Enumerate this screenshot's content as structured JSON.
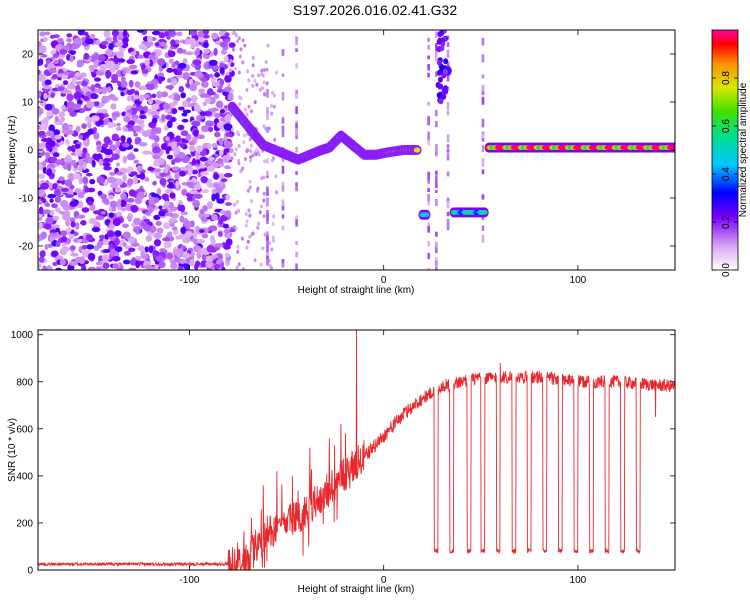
{
  "title": "S197.2026.016.02.41.G32",
  "colors": {
    "snr_line": "#e8282c",
    "frame": "#000000",
    "background": "#ffffff"
  },
  "chart_data": [
    {
      "type": "heatmap",
      "xlabel": "Height of straight line (km)",
      "ylabel": "Frequency (Hz)",
      "xlim": [
        -178,
        150
      ],
      "ylim": [
        -25,
        25
      ],
      "xticks": [
        -100,
        0,
        100
      ],
      "yticks": [
        -20,
        -10,
        0,
        10,
        20
      ],
      "colorbar": {
        "label": "Normalized spectral amplitude",
        "range": [
          0,
          1
        ],
        "ticks": [
          "0.0",
          "0.2",
          "0.4",
          "0.6",
          "0.8"
        ],
        "tick_values": [
          0.0,
          0.2,
          0.4,
          0.6,
          0.8
        ]
      },
      "ridge": [
        {
          "x": -78,
          "f": 9
        },
        {
          "x": -72,
          "f": 6
        },
        {
          "x": -66,
          "f": 3
        },
        {
          "x": -62,
          "f": 1
        },
        {
          "x": -56,
          "f": 0
        },
        {
          "x": -50,
          "f": -1
        },
        {
          "x": -44,
          "f": -2
        },
        {
          "x": -38,
          "f": -1
        },
        {
          "x": -32,
          "f": 0
        },
        {
          "x": -28,
          "f": 0.5
        },
        {
          "x": -22,
          "f": 3
        },
        {
          "x": -16,
          "f": 1
        },
        {
          "x": -10,
          "f": -1
        },
        {
          "x": -4,
          "f": -1
        },
        {
          "x": 2,
          "f": -0.5
        },
        {
          "x": 10,
          "f": 0
        },
        {
          "x": 18,
          "f": 0
        }
      ],
      "segments": [
        {
          "x0": 54,
          "x1": 150,
          "f": 0.5,
          "amp": 1.0
        },
        {
          "x0": 20,
          "x1": 22,
          "f": -13.5,
          "amp": 0.5
        },
        {
          "x0": 36,
          "x1": 52,
          "f": -13,
          "amp": 0.55
        },
        {
          "x0": 31,
          "x1": 33,
          "f": 16.5,
          "amp": 0.5
        }
      ]
    },
    {
      "type": "line",
      "xlabel": "Height of straight line (km)",
      "ylabel": "SNR (10 * v/v)",
      "xlim": [
        -178,
        150
      ],
      "ylim": [
        0,
        1020
      ],
      "xticks": [
        -100,
        0,
        100
      ],
      "yticks": [
        0,
        200,
        400,
        600,
        800,
        1000
      ],
      "series": [
        {
          "name": "SNR",
          "anchors": [
            {
              "x": -178,
              "y": 25
            },
            {
              "x": -80,
              "y": 25
            },
            {
              "x": -70,
              "y": 60
            },
            {
              "x": -60,
              "y": 150
            },
            {
              "x": -50,
              "y": 200
            },
            {
              "x": -40,
              "y": 250
            },
            {
              "x": -30,
              "y": 330
            },
            {
              "x": -20,
              "y": 400
            },
            {
              "x": -10,
              "y": 480
            },
            {
              "x": 0,
              "y": 570
            },
            {
              "x": 10,
              "y": 660
            },
            {
              "x": 20,
              "y": 730
            },
            {
              "x": 30,
              "y": 780
            },
            {
              "x": 45,
              "y": 810
            },
            {
              "x": 60,
              "y": 820
            },
            {
              "x": 80,
              "y": 820
            },
            {
              "x": 100,
              "y": 800
            },
            {
              "x": 120,
              "y": 800
            },
            {
              "x": 150,
              "y": 780
            }
          ],
          "dip_level": 80,
          "dips": [
            {
              "x0": 26,
              "x1": 28
            },
            {
              "x0": 34,
              "x1": 36
            },
            {
              "x0": 43,
              "x1": 45
            },
            {
              "x0": 50,
              "x1": 52
            },
            {
              "x0": 58,
              "x1": 60
            },
            {
              "x0": 66,
              "x1": 68
            },
            {
              "x0": 74,
              "x1": 76
            },
            {
              "x0": 82,
              "x1": 84
            },
            {
              "x0": 90,
              "x1": 92
            },
            {
              "x0": 98,
              "x1": 100
            },
            {
              "x0": 106,
              "x1": 108
            },
            {
              "x0": 114,
              "x1": 116
            },
            {
              "x0": 122,
              "x1": 124
            },
            {
              "x0": 130,
              "x1": 132
            }
          ],
          "spikes": [
            {
              "x": -14,
              "y": 1020
            },
            {
              "x": -62,
              "y": 360
            },
            {
              "x": -55,
              "y": 420
            },
            {
              "x": -47,
              "y": 400
            },
            {
              "x": -38,
              "y": 520
            },
            {
              "x": -28,
              "y": 560
            },
            {
              "x": -22,
              "y": 620
            },
            {
              "x": 60,
              "y": 880
            },
            {
              "x": 140,
              "y": 650
            }
          ]
        }
      ]
    }
  ]
}
